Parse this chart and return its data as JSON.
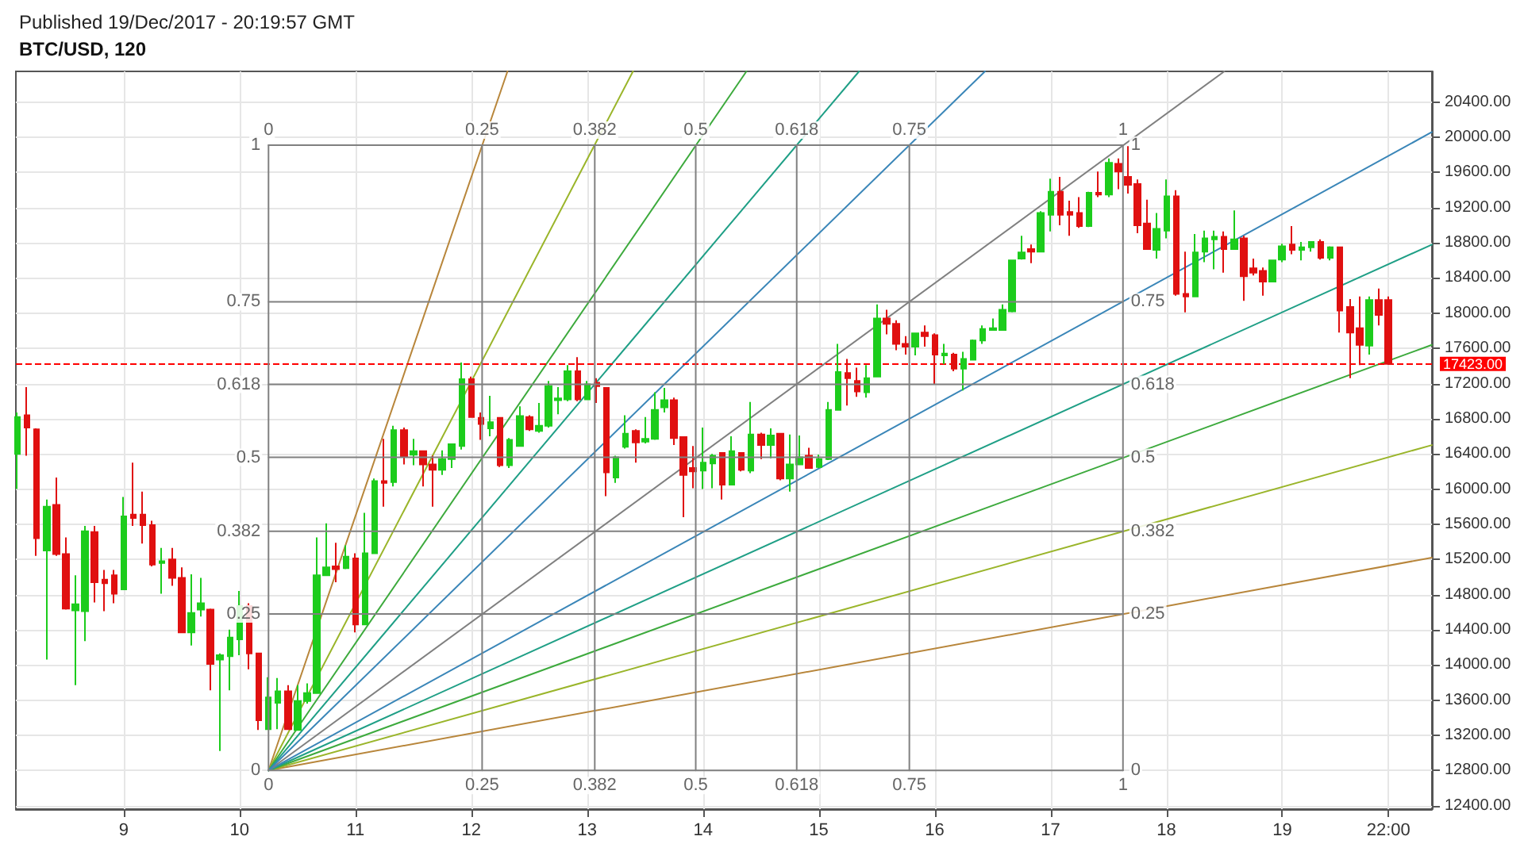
{
  "chart_data": {
    "type": "candlestick",
    "title": "BTC/USD, 120",
    "subtitle": "Published 19/Dec/2017 - 20:19:57 GMT",
    "grid": true,
    "marker": "none",
    "x": [
      "2017-12-08T02:00",
      "2017-12-08T04:00",
      "2017-12-08T06:00",
      "2017-12-08T08:00",
      "2017-12-08T10:00",
      "2017-12-08T12:00",
      "2017-12-08T14:00",
      "2017-12-08T16:00",
      "2017-12-08T18:00",
      "2017-12-08T20:00",
      "2017-12-08T22:00",
      "2017-12-09T00:00",
      "2017-12-09T02:00",
      "2017-12-09T04:00",
      "2017-12-09T06:00",
      "2017-12-09T08:00",
      "2017-12-09T10:00",
      "2017-12-09T12:00",
      "2017-12-09T14:00",
      "2017-12-09T16:00",
      "2017-12-09T18:00",
      "2017-12-09T20:00",
      "2017-12-09T22:00",
      "2017-12-10T00:00",
      "2017-12-10T02:00",
      "2017-12-10T04:00",
      "2017-12-10T06:00",
      "2017-12-10T08:00",
      "2017-12-10T10:00",
      "2017-12-10T12:00",
      "2017-12-10T14:00",
      "2017-12-10T16:00",
      "2017-12-10T18:00",
      "2017-12-10T20:00",
      "2017-12-10T22:00",
      "2017-12-11T00:00",
      "2017-12-11T02:00",
      "2017-12-11T04:00",
      "2017-12-11T06:00",
      "2017-12-11T08:00",
      "2017-12-11T10:00",
      "2017-12-11T12:00",
      "2017-12-11T14:00",
      "2017-12-11T16:00",
      "2017-12-11T18:00",
      "2017-12-11T20:00",
      "2017-12-11T22:00",
      "2017-12-12T00:00",
      "2017-12-12T02:00",
      "2017-12-12T04:00",
      "2017-12-12T06:00",
      "2017-12-12T08:00",
      "2017-12-12T10:00",
      "2017-12-12T12:00",
      "2017-12-12T14:00",
      "2017-12-12T16:00",
      "2017-12-12T18:00",
      "2017-12-12T20:00",
      "2017-12-12T22:00",
      "2017-12-13T00:00",
      "2017-12-13T02:00",
      "2017-12-13T04:00",
      "2017-12-13T06:00",
      "2017-12-13T08:00",
      "2017-12-13T10:00",
      "2017-12-13T12:00",
      "2017-12-13T14:00",
      "2017-12-13T16:00",
      "2017-12-13T18:00",
      "2017-12-13T20:00",
      "2017-12-13T22:00",
      "2017-12-14T00:00",
      "2017-12-14T02:00",
      "2017-12-14T04:00",
      "2017-12-14T06:00",
      "2017-12-14T08:00",
      "2017-12-14T10:00",
      "2017-12-14T12:00",
      "2017-12-14T14:00",
      "2017-12-14T16:00",
      "2017-12-14T18:00",
      "2017-12-14T20:00",
      "2017-12-14T22:00",
      "2017-12-15T00:00",
      "2017-12-15T02:00",
      "2017-12-15T04:00",
      "2017-12-15T06:00",
      "2017-12-15T08:00",
      "2017-12-15T10:00",
      "2017-12-15T12:00",
      "2017-12-15T14:00",
      "2017-12-15T16:00",
      "2017-12-15T18:00",
      "2017-12-15T20:00",
      "2017-12-15T22:00",
      "2017-12-16T00:00",
      "2017-12-16T02:00",
      "2017-12-16T04:00",
      "2017-12-16T06:00",
      "2017-12-16T08:00",
      "2017-12-16T10:00",
      "2017-12-16T12:00",
      "2017-12-16T14:00",
      "2017-12-16T16:00",
      "2017-12-16T18:00",
      "2017-12-16T20:00",
      "2017-12-16T22:00",
      "2017-12-17T00:00",
      "2017-12-17T02:00",
      "2017-12-17T04:00",
      "2017-12-17T06:00",
      "2017-12-17T08:00",
      "2017-12-17T10:00",
      "2017-12-17T12:00",
      "2017-12-17T14:00",
      "2017-12-17T16:00",
      "2017-12-17T18:00",
      "2017-12-17T20:00",
      "2017-12-17T22:00",
      "2017-12-18T00:00",
      "2017-12-18T02:00",
      "2017-12-18T04:00",
      "2017-12-18T06:00",
      "2017-12-18T08:00",
      "2017-12-18T10:00",
      "2017-12-18T12:00",
      "2017-12-18T14:00",
      "2017-12-18T16:00",
      "2017-12-18T18:00",
      "2017-12-18T20:00",
      "2017-12-18T22:00",
      "2017-12-19T00:00",
      "2017-12-19T02:00",
      "2017-12-19T04:00",
      "2017-12-19T06:00",
      "2017-12-19T08:00",
      "2017-12-19T10:00",
      "2017-12-19T12:00",
      "2017-12-19T14:00",
      "2017-12-19T16:00",
      "2017-12-19T18:00",
      "2017-12-19T20:00",
      "2017-12-19T22:00"
    ],
    "ohlc": [
      [
        16400,
        16870,
        16000,
        16820
      ],
      [
        16840,
        17160,
        16380,
        16700
      ],
      [
        16680,
        16690,
        15240,
        15440
      ],
      [
        15300,
        15880,
        14060,
        15800
      ],
      [
        15820,
        16130,
        15240,
        15260
      ],
      [
        15260,
        15450,
        14630,
        14640
      ],
      [
        14620,
        15020,
        13770,
        14690
      ],
      [
        14610,
        15580,
        14270,
        15520
      ],
      [
        15510,
        15580,
        14710,
        14940
      ],
      [
        14970,
        15080,
        14610,
        14930
      ],
      [
        15020,
        15080,
        14700,
        14810
      ],
      [
        14860,
        15910,
        14850,
        15690
      ],
      [
        15710,
        16300,
        15580,
        15670
      ],
      [
        15710,
        15970,
        15380,
        15590
      ],
      [
        15590,
        15640,
        15120,
        15140
      ],
      [
        15160,
        15330,
        14810,
        15180
      ],
      [
        15200,
        15330,
        14900,
        14990
      ],
      [
        14990,
        15110,
        14360,
        14370
      ],
      [
        14370,
        15030,
        14220,
        14590
      ],
      [
        14630,
        14990,
        14550,
        14700
      ],
      [
        14630,
        14640,
        13710,
        14010
      ],
      [
        14060,
        14130,
        13020,
        14110
      ],
      [
        14100,
        14400,
        13710,
        14310
      ],
      [
        14290,
        14840,
        14110,
        14670
      ],
      [
        14670,
        14700,
        13950,
        14130
      ],
      [
        14130,
        14130,
        13260,
        13370
      ],
      [
        13270,
        13860,
        13260,
        13630
      ],
      [
        13570,
        13850,
        13270,
        13700
      ],
      [
        13700,
        13770,
        13260,
        13270
      ],
      [
        13260,
        13770,
        13250,
        13590
      ],
      [
        13590,
        13790,
        13560,
        13680
      ],
      [
        13680,
        15450,
        13680,
        15020
      ],
      [
        15020,
        15610,
        15020,
        15110
      ],
      [
        15120,
        15390,
        14940,
        15090
      ],
      [
        15100,
        15360,
        15090,
        15230
      ],
      [
        15210,
        15270,
        14370,
        14460
      ],
      [
        14460,
        15730,
        14450,
        15270
      ],
      [
        15270,
        16120,
        15270,
        16090
      ],
      [
        16090,
        16570,
        15800,
        16070
      ],
      [
        16080,
        16720,
        16030,
        16670
      ],
      [
        16670,
        16700,
        16280,
        16370
      ],
      [
        16390,
        16570,
        16270,
        16430
      ],
      [
        16430,
        16440,
        16030,
        16280
      ],
      [
        16280,
        16380,
        15800,
        16220
      ],
      [
        16220,
        16440,
        16160,
        16340
      ],
      [
        16340,
        16520,
        16240,
        16510
      ],
      [
        16490,
        17440,
        16450,
        17250
      ],
      [
        17250,
        17280,
        16810,
        16820
      ],
      [
        16810,
        16870,
        16560,
        16740
      ],
      [
        16690,
        17060,
        16600,
        16760
      ],
      [
        16810,
        16820,
        16250,
        16270
      ],
      [
        16270,
        16580,
        16240,
        16560
      ],
      [
        16490,
        16940,
        16480,
        16830
      ],
      [
        16820,
        16840,
        16660,
        16680
      ],
      [
        16660,
        16980,
        16640,
        16720
      ],
      [
        16720,
        17230,
        16700,
        17170
      ],
      [
        17010,
        17160,
        16850,
        17030
      ],
      [
        17020,
        17410,
        17000,
        17340
      ],
      [
        17340,
        17500,
        17000,
        17020
      ],
      [
        17020,
        17230,
        17010,
        17190
      ],
      [
        17210,
        17260,
        16980,
        17170
      ],
      [
        17150,
        17150,
        15920,
        16190
      ],
      [
        16130,
        16380,
        16070,
        16360
      ],
      [
        16480,
        16840,
        16460,
        16630
      ],
      [
        16660,
        16680,
        16300,
        16530
      ],
      [
        16540,
        16820,
        16520,
        16570
      ],
      [
        16570,
        17100,
        16560,
        16900
      ],
      [
        16930,
        17150,
        16870,
        17010
      ],
      [
        17010,
        17040,
        16500,
        16580
      ],
      [
        16590,
        16600,
        15680,
        16160
      ],
      [
        16240,
        16490,
        16010,
        16200
      ],
      [
        16210,
        16700,
        16000,
        16300
      ],
      [
        16290,
        16400,
        16010,
        16380
      ],
      [
        16410,
        16420,
        15880,
        16050
      ],
      [
        16050,
        16600,
        16040,
        16430
      ],
      [
        16410,
        16420,
        16200,
        16220
      ],
      [
        16210,
        16990,
        16180,
        16620
      ],
      [
        16620,
        16640,
        16340,
        16500
      ],
      [
        16500,
        16690,
        16350,
        16610
      ],
      [
        16630,
        16630,
        16100,
        16120
      ],
      [
        16120,
        16620,
        15970,
        16280
      ],
      [
        16280,
        16610,
        16270,
        16360
      ],
      [
        16380,
        16470,
        16240,
        16240
      ],
      [
        16250,
        16390,
        16240,
        16340
      ],
      [
        16340,
        16990,
        16330,
        16900
      ],
      [
        16900,
        17650,
        16890,
        17330
      ],
      [
        17320,
        17480,
        16950,
        17260
      ],
      [
        17230,
        17380,
        17050,
        17110
      ],
      [
        17100,
        17410,
        17040,
        17260
      ],
      [
        17280,
        18100,
        17270,
        17940
      ],
      [
        17940,
        18040,
        17760,
        17880
      ],
      [
        17880,
        17920,
        17580,
        17650
      ],
      [
        17650,
        17740,
        17530,
        17620
      ],
      [
        17620,
        17780,
        17520,
        17770
      ],
      [
        17780,
        17860,
        17620,
        17740
      ],
      [
        17750,
        17770,
        17190,
        17530
      ],
      [
        17520,
        17650,
        17420,
        17540
      ],
      [
        17530,
        17550,
        17340,
        17370
      ],
      [
        17370,
        17560,
        17120,
        17480
      ],
      [
        17470,
        17700,
        17470,
        17690
      ],
      [
        17690,
        17860,
        17650,
        17820
      ],
      [
        17810,
        17940,
        17800,
        17830
      ],
      [
        17810,
        18100,
        17800,
        18040
      ],
      [
        18020,
        18600,
        18010,
        18600
      ],
      [
        18620,
        18880,
        18610,
        18690
      ],
      [
        18730,
        18780,
        18570,
        18700
      ],
      [
        18700,
        19160,
        18700,
        19140
      ],
      [
        19120,
        19530,
        18930,
        19380
      ],
      [
        19380,
        19550,
        19000,
        19120
      ],
      [
        19150,
        19280,
        18880,
        19120
      ],
      [
        19140,
        19320,
        18970,
        18990
      ],
      [
        18990,
        19380,
        18980,
        19370
      ],
      [
        19370,
        19610,
        19320,
        19350
      ],
      [
        19350,
        19760,
        19320,
        19710
      ],
      [
        19700,
        19760,
        19410,
        19610
      ],
      [
        19550,
        19900,
        19360,
        19460
      ],
      [
        19470,
        19520,
        18910,
        19000
      ],
      [
        19020,
        19290,
        18730,
        18730
      ],
      [
        18720,
        19140,
        18620,
        18960
      ],
      [
        18940,
        19520,
        18850,
        19330
      ],
      [
        19330,
        19400,
        18200,
        18220
      ],
      [
        18220,
        18700,
        18010,
        18190
      ],
      [
        18190,
        18900,
        18190,
        18690
      ],
      [
        18700,
        18940,
        18580,
        18850
      ],
      [
        18840,
        18940,
        18500,
        18870
      ],
      [
        18870,
        18930,
        18460,
        18730
      ],
      [
        18730,
        19170,
        18730,
        18840
      ],
      [
        18850,
        18880,
        18140,
        18420
      ],
      [
        18510,
        18620,
        18430,
        18460
      ],
      [
        18480,
        18520,
        18200,
        18360
      ],
      [
        18360,
        18610,
        18350,
        18600
      ],
      [
        18610,
        18790,
        18580,
        18760
      ],
      [
        18780,
        18990,
        18670,
        18720
      ],
      [
        18720,
        18810,
        18600,
        18750
      ],
      [
        18750,
        18820,
        18700,
        18810
      ],
      [
        18810,
        18840,
        18610,
        18630
      ],
      [
        18630,
        18760,
        18600,
        18750
      ],
      [
        18750,
        18750,
        17780,
        18030
      ],
      [
        18070,
        18160,
        17260,
        17780
      ],
      [
        17830,
        18190,
        17410,
        17640
      ],
      [
        17630,
        18190,
        17530,
        18150
      ],
      [
        18150,
        18280,
        17860,
        17980
      ],
      [
        18150,
        18190,
        17423,
        17423
      ]
    ],
    "series": [
      {
        "type": "line",
        "name": "0",
        "color": "#808080",
        "x": [
          "2017-12-10T06:00",
          "2017-12-17T15:00"
        ],
        "values": [
          12800,
          12800
        ]
      },
      {
        "type": "line",
        "name": "0.25",
        "color": "#808080",
        "x": [
          "2017-12-10T06:00",
          "2017-12-17T15:00"
        ],
        "values": [
          14580,
          14580
        ]
      },
      {
        "type": "line",
        "name": "0.382",
        "color": "#808080",
        "x": [
          "2017-12-10T06:00",
          "2017-12-17T15:00"
        ],
        "values": [
          15520,
          15520
        ]
      },
      {
        "type": "line",
        "name": "0.5",
        "color": "#808080",
        "x": [
          "2017-12-10T06:00",
          "2017-12-17T15:00"
        ],
        "values": [
          16360,
          16360
        ]
      },
      {
        "type": "line",
        "name": "0.618",
        "color": "#808080",
        "x": [
          "2017-12-10T06:00",
          "2017-12-17T15:00"
        ],
        "values": [
          17190,
          17190
        ]
      },
      {
        "type": "line",
        "name": "0.75",
        "color": "#808080",
        "x": [
          "2017-12-10T06:00",
          "2017-12-17T15:00"
        ],
        "values": [
          18130,
          18130
        ]
      },
      {
        "type": "line",
        "name": "1",
        "color": "#808080",
        "x": [
          "2017-12-10T06:00",
          "2017-12-17T15:00"
        ],
        "values": [
          19910,
          19910
        ]
      },
      {
        "type": "line",
        "name": "0",
        "color": "#808080",
        "x": [
          "2017-12-10T06:00",
          "2017-12-10T06:00"
        ],
        "values": [
          12800,
          19910
        ]
      },
      {
        "type": "line",
        "name": "0.25",
        "color": "#808080",
        "x": [
          "2017-12-12T02:15",
          "2017-12-12T02:15"
        ],
        "values": [
          12800,
          19910
        ]
      },
      {
        "type": "line",
        "name": "0.382",
        "color": "#808080",
        "x": [
          "2017-12-13T01:35",
          "2017-12-13T01:35"
        ],
        "values": [
          12800,
          19910
        ]
      },
      {
        "type": "line",
        "name": "0.5",
        "color": "#808080",
        "x": [
          "2017-12-13T22:30",
          "2017-12-13T22:30"
        ],
        "values": [
          12800,
          19910
        ]
      },
      {
        "type": "line",
        "name": "0.618",
        "color": "#808080",
        "x": [
          "2017-12-14T19:25",
          "2017-12-14T19:25"
        ],
        "values": [
          12800,
          19910
        ]
      },
      {
        "type": "line",
        "name": "0.75",
        "color": "#808080",
        "x": [
          "2017-12-15T18:45",
          "2017-12-15T18:45"
        ],
        "values": [
          12800,
          19910
        ]
      },
      {
        "type": "line",
        "name": "1",
        "color": "#808080",
        "x": [
          "2017-12-17T15:00",
          "2017-12-17T15:00"
        ],
        "values": [
          12800,
          19910
        ]
      },
      {
        "type": "line",
        "color": "#b8863b",
        "x": [
          "2017-12-10T06:00",
          "2017-12-20T07:00"
        ],
        "values": [
          12800,
          15220
        ]
      },
      {
        "type": "line",
        "color": "#9ab52a",
        "x": [
          "2017-12-10T06:00",
          "2017-12-20T07:00"
        ],
        "values": [
          12800,
          16500
        ]
      },
      {
        "type": "line",
        "color": "#3daa3d",
        "x": [
          "2017-12-10T06:00",
          "2017-12-20T07:00"
        ],
        "values": [
          12800,
          17640
        ]
      },
      {
        "type": "line",
        "color": "#1f9f86",
        "x": [
          "2017-12-10T06:00",
          "2017-12-20T07:00"
        ],
        "values": [
          12800,
          18780
        ]
      },
      {
        "type": "line",
        "color": "#3a86b8",
        "x": [
          "2017-12-10T06:00",
          "2017-12-20T07:00"
        ],
        "values": [
          12800,
          20060
        ]
      },
      {
        "type": "line",
        "color": "#808080",
        "x": [
          "2017-12-10T06:00",
          "2017-12-18T12:00"
        ],
        "values": [
          12800,
          20750
        ]
      },
      {
        "type": "line",
        "color": "#b8863b",
        "x": [
          "2017-12-10T06:00",
          "2017-12-12T07:30"
        ],
        "values": [
          12800,
          20750
        ]
      },
      {
        "type": "line",
        "color": "#9ab52a",
        "x": [
          "2017-12-10T06:00",
          "2017-12-13T09:30"
        ],
        "values": [
          12800,
          20750
        ]
      },
      {
        "type": "line",
        "color": "#3daa3d",
        "x": [
          "2017-12-10T06:00",
          "2017-12-14T09:00"
        ],
        "values": [
          12800,
          20750
        ]
      },
      {
        "type": "line",
        "color": "#1f9f86",
        "x": [
          "2017-12-10T06:00",
          "2017-12-15T08:20"
        ],
        "values": [
          12800,
          20750
        ]
      },
      {
        "type": "line",
        "color": "#3a86b8",
        "x": [
          "2017-12-10T06:00",
          "2017-12-16T10:25"
        ],
        "values": [
          12800,
          20750
        ]
      }
    ],
    "ref_lines": [
      {
        "axis": "y",
        "value": 17423,
        "label": "17423.00",
        "color": "#ff0000",
        "line_style": "dashed"
      }
    ],
    "xlim": [
      "2017-12-08T01:40",
      "2017-12-20T07:00"
    ],
    "xticks": [
      {
        "value": "2017-12-09",
        "label": "9"
      },
      {
        "value": "2017-12-10",
        "label": "10"
      },
      {
        "value": "2017-12-11",
        "label": "11"
      },
      {
        "value": "2017-12-12",
        "label": "12"
      },
      {
        "value": "2017-12-13",
        "label": "13"
      },
      {
        "value": "2017-12-14",
        "label": "14"
      },
      {
        "value": "2017-12-15",
        "label": "15"
      },
      {
        "value": "2017-12-16",
        "label": "16"
      },
      {
        "value": "2017-12-17",
        "label": "17"
      },
      {
        "value": "2017-12-18",
        "label": "18"
      },
      {
        "value": "2017-12-19",
        "label": "19"
      },
      {
        "value": "2017-12-19T22:00",
        "label": "22:00"
      }
    ],
    "ylim": [
      12360,
      20750
    ],
    "yticks": [
      {
        "value": 12400,
        "label": "12400.00"
      },
      {
        "value": 12800,
        "label": "12800.00"
      },
      {
        "value": 13200,
        "label": "13200.00"
      },
      {
        "value": 13600,
        "label": "13600.00"
      },
      {
        "value": 14000,
        "label": "14000.00"
      },
      {
        "value": 14400,
        "label": "14400.00"
      },
      {
        "value": 14800,
        "label": "14800.00"
      },
      {
        "value": 15200,
        "label": "15200.00"
      },
      {
        "value": 15600,
        "label": "15600.00"
      },
      {
        "value": 16000,
        "label": "16000.00"
      },
      {
        "value": 16400,
        "label": "16400.00"
      },
      {
        "value": 16800,
        "label": "16800.00"
      },
      {
        "value": 17200,
        "label": "17200.00"
      },
      {
        "value": 17600,
        "label": "17600.00"
      },
      {
        "value": 18000,
        "label": "18000.00"
      },
      {
        "value": 18400,
        "label": "18400.00"
      },
      {
        "value": 18800,
        "label": "18800.00"
      },
      {
        "value": 19200,
        "label": "19200.00"
      },
      {
        "value": 19600,
        "label": "19600.00"
      },
      {
        "value": 20000,
        "label": "20000.00"
      },
      {
        "value": 20400,
        "label": "20400.00"
      }
    ]
  }
}
